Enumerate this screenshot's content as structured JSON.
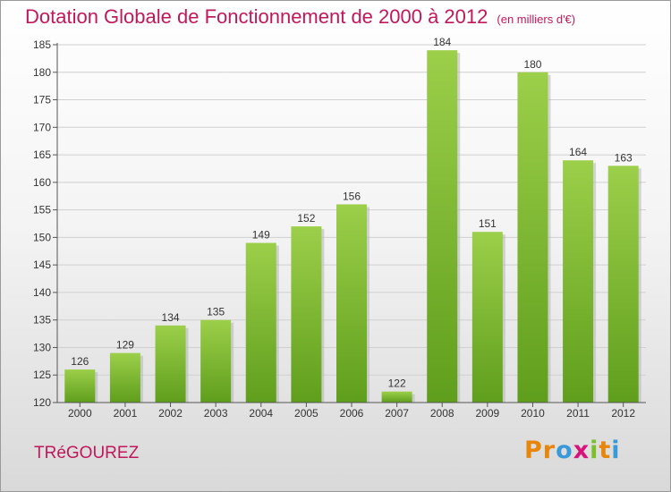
{
  "header": {
    "title": "Dotation Globale de Fonctionnement de 2000 à 2012",
    "subtitle": "(en milliers d'€)"
  },
  "footer": {
    "commune": "TRéGOUREZ",
    "logo": [
      "P",
      "r",
      "o",
      "x",
      "i",
      "t",
      "i"
    ]
  },
  "colors": {
    "bar": "#8cc63f",
    "bar_dark": "#5a9a1a",
    "title": "#c0185a",
    "grid": "#d0d0d0",
    "logo": [
      "#e8860c",
      "#e8860c",
      "#3a9ad9",
      "#d8127a",
      "#7cbf2a",
      "#e8860c",
      "#3a9ad9"
    ]
  },
  "chart_data": {
    "type": "bar",
    "title": "Dotation Globale de Fonctionnement de 2000 à 2012",
    "subtitle": "(en milliers d'€)",
    "categories": [
      "2000",
      "2001",
      "2002",
      "2003",
      "2004",
      "2005",
      "2006",
      "2007",
      "2008",
      "2009",
      "2010",
      "2011",
      "2012"
    ],
    "values": [
      126,
      129,
      134,
      135,
      149,
      152,
      156,
      122,
      184,
      151,
      180,
      164,
      163
    ],
    "ylim": [
      120,
      185
    ],
    "yticks": [
      120,
      125,
      130,
      135,
      140,
      145,
      150,
      155,
      160,
      165,
      170,
      175,
      180,
      185
    ],
    "grid": true,
    "xlabel": "",
    "ylabel": ""
  }
}
